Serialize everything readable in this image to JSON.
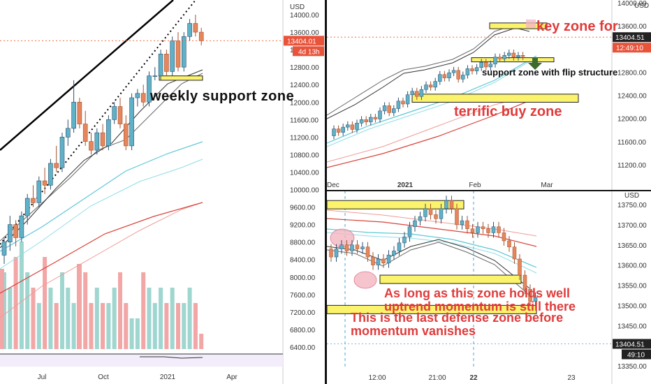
{
  "colors": {
    "up": "#5fb1c7",
    "down": "#e6865c",
    "wickUp": "#2f4f6f",
    "wickDown": "#a0522d",
    "volUp": "#9fd6d0",
    "volDown": "#f2a6a6",
    "black": "#111111",
    "ma1": "#333333",
    "ma2": "#666666",
    "cyan1": "#5ec7d6",
    "cyan2": "#8fdde6",
    "red1": "#d9433b",
    "red2": "#f09a96",
    "zone": "#fbf36b",
    "zoneBorder": "#222222",
    "annot": "#e03b3b",
    "price": "#f15a2a",
    "dark": "#222222"
  },
  "panels": {
    "weekly": {
      "currency": "USD",
      "price_tag": "13404.01",
      "countdown_tag": "4d 13h",
      "y_ticks": [
        "14000.00",
        "13600.00",
        "13200.00",
        "12800.00",
        "12400.00",
        "12000.00",
        "11600.00",
        "11200.00",
        "10800.00",
        "10400.00",
        "10000.00",
        "9600.00",
        "9200.00",
        "8800.00",
        "8400.00",
        "8000.00",
        "7600.00",
        "7200.00",
        "6800.00",
        "6400.00"
      ],
      "x_ticks": [
        "Jul",
        "Oct",
        "2021",
        "Apr"
      ],
      "annotation": "weekly support zone"
    },
    "daily": {
      "currency": "USD",
      "price_tag": "13404.51",
      "countdown_tag": "12:49:10",
      "y_ticks": [
        "14000.00",
        "13600.00",
        "13200.00",
        "12800.00",
        "12400.00",
        "12000.00",
        "11600.00",
        "11200.00"
      ],
      "top_partial_tick": "14000.00",
      "x_ticks": [
        "Dec",
        "2021",
        "Feb",
        "Mar"
      ],
      "annotations": {
        "key": "key zone for",
        "support": "support zone with flip structure",
        "buy": "terrific buy zone"
      }
    },
    "intraday": {
      "currency": "USD",
      "price_tag": "13404.51",
      "countdown_tag": "49:10",
      "y_ticks": [
        "13750.00",
        "13700.00",
        "13650.00",
        "13600.00",
        "13550.00",
        "13500.00",
        "13450.00",
        "13400.00",
        "13350.00"
      ],
      "x_ticks": [
        "12:00",
        "21:00",
        "22",
        "23"
      ],
      "annotations": {
        "line1": "As long as this zone holds well",
        "line2": "uptrend momentum is still there",
        "line3": "This is the last defense zone before",
        "line4": "momentum vanishes"
      }
    }
  },
  "chart_data": [
    {
      "type": "candlestick",
      "title": "",
      "timeframe": "weekly",
      "currency": "USD",
      "x_ticks": [
        "Jul",
        "Oct",
        "2021",
        "Apr"
      ],
      "ylim": [
        6200,
        14200
      ],
      "last_price": 13404.01,
      "candles": [
        {
          "o": 8500,
          "h": 8900,
          "l": 8300,
          "c": 8800
        },
        {
          "o": 8800,
          "h": 9400,
          "l": 8600,
          "c": 9200
        },
        {
          "o": 9200,
          "h": 9300,
          "l": 8700,
          "c": 8900
        },
        {
          "o": 8900,
          "h": 9500,
          "l": 8800,
          "c": 9400
        },
        {
          "o": 9400,
          "h": 9900,
          "l": 9200,
          "c": 9800
        },
        {
          "o": 9800,
          "h": 10100,
          "l": 9600,
          "c": 9700
        },
        {
          "o": 9700,
          "h": 10300,
          "l": 9600,
          "c": 10200
        },
        {
          "o": 10200,
          "h": 10500,
          "l": 9900,
          "c": 10100
        },
        {
          "o": 10100,
          "h": 10700,
          "l": 10000,
          "c": 10600
        },
        {
          "o": 10600,
          "h": 11000,
          "l": 10400,
          "c": 10500
        },
        {
          "o": 10500,
          "h": 11300,
          "l": 10400,
          "c": 11200
        },
        {
          "o": 11200,
          "h": 11600,
          "l": 11000,
          "c": 11400
        },
        {
          "o": 11400,
          "h": 12500,
          "l": 11300,
          "c": 12000
        },
        {
          "o": 12000,
          "h": 12100,
          "l": 11400,
          "c": 11500
        },
        {
          "o": 11500,
          "h": 11800,
          "l": 11000,
          "c": 11100
        },
        {
          "o": 11100,
          "h": 11300,
          "l": 10800,
          "c": 10900
        },
        {
          "o": 10900,
          "h": 11400,
          "l": 10800,
          "c": 11300
        },
        {
          "o": 11300,
          "h": 11500,
          "l": 10900,
          "c": 11000
        },
        {
          "o": 11000,
          "h": 11700,
          "l": 10900,
          "c": 11600
        },
        {
          "o": 11600,
          "h": 12000,
          "l": 11500,
          "c": 11900
        },
        {
          "o": 11900,
          "h": 12100,
          "l": 11400,
          "c": 11500
        },
        {
          "o": 11500,
          "h": 11700,
          "l": 10900,
          "c": 11000
        },
        {
          "o": 11000,
          "h": 12200,
          "l": 10900,
          "c": 12100
        },
        {
          "o": 12100,
          "h": 12300,
          "l": 11900,
          "c": 12200
        },
        {
          "o": 12200,
          "h": 12400,
          "l": 11900,
          "c": 12000
        },
        {
          "o": 12000,
          "h": 12700,
          "l": 11900,
          "c": 12600
        },
        {
          "o": 12600,
          "h": 12800,
          "l": 12500,
          "c": 12600
        },
        {
          "o": 12600,
          "h": 13200,
          "l": 12500,
          "c": 13100
        },
        {
          "o": 13100,
          "h": 13200,
          "l": 12600,
          "c": 12700
        },
        {
          "o": 12700,
          "h": 13500,
          "l": 12600,
          "c": 13400
        },
        {
          "o": 13400,
          "h": 13600,
          "l": 12700,
          "c": 12800
        },
        {
          "o": 12800,
          "h": 13600,
          "l": 12700,
          "c": 13500
        },
        {
          "o": 13500,
          "h": 13900,
          "l": 13400,
          "c": 13800
        },
        {
          "o": 13800,
          "h": 14000,
          "l": 13500,
          "c": 13600
        },
        {
          "o": 13600,
          "h": 13700,
          "l": 13300,
          "c": 13404
        }
      ],
      "volume": [
        5,
        4,
        6,
        7,
        5,
        4,
        3,
        6,
        4,
        3,
        5,
        4,
        3,
        4,
        5,
        3,
        4,
        3,
        3,
        4,
        5,
        3,
        2,
        2,
        5,
        4,
        3,
        4,
        3,
        4,
        3,
        3,
        4,
        3,
        1
      ],
      "zones": [
        {
          "label": "weekly support zone",
          "from": 12500,
          "to": 12600
        }
      ]
    },
    {
      "type": "candlestick",
      "title": "",
      "timeframe": "daily",
      "currency": "USD",
      "x_ticks": [
        "Dec",
        "2021",
        "Feb",
        "Mar"
      ],
      "ylim": [
        11050,
        14100
      ],
      "last_price": 13404.51,
      "zones": [
        {
          "label": "key zone for",
          "from": 13550,
          "to": 13650
        },
        {
          "label": "support zone with flip structure",
          "from": 12980,
          "to": 13050
        },
        {
          "label": "terrific buy zone",
          "from": 12280,
          "to": 12420
        }
      ]
    },
    {
      "type": "candlestick",
      "title": "",
      "timeframe": "intraday",
      "currency": "USD",
      "x_ticks": [
        "12:00",
        "21:00",
        "22",
        "23"
      ],
      "ylim": [
        13340,
        13780
      ],
      "last_price": 13404.51,
      "zones": [
        {
          "label": "As long as this zone holds well uptrend momentum is still there",
          "from": 13565,
          "to": 13575
        },
        {
          "label": "This is the last defense zone before momentum vanishes",
          "from": 13480,
          "to": 13500
        },
        {
          "label": "",
          "from": 13740,
          "to": 13760
        }
      ]
    }
  ]
}
